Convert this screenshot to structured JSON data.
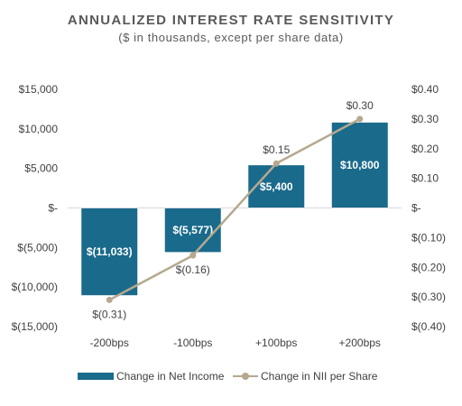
{
  "chart_data": {
    "type": "bar",
    "title": "ANNUALIZED INTEREST RATE SENSITIVITY",
    "subtitle": "($ in thousands, except per share data)",
    "categories": [
      "-200bps",
      "-100bps",
      "+100bps",
      "+200bps"
    ],
    "series": [
      {
        "name": "Change in Net Income",
        "type": "bar",
        "axis": "left",
        "values": [
          -11033,
          -5577,
          5400,
          10800
        ],
        "labels": [
          "$(11,033)",
          "$(5,577)",
          "$5,400",
          "$10,800"
        ],
        "color": "#1a6a8c"
      },
      {
        "name": "Change in NII per Share",
        "type": "line",
        "axis": "right",
        "values": [
          -0.31,
          -0.16,
          0.15,
          0.3
        ],
        "labels": [
          "$(0.31)",
          "$(0.16)",
          "$0.15",
          "$0.30"
        ],
        "color": "#b5a88f"
      }
    ],
    "y_left": {
      "ylim": [
        -15000,
        15000
      ],
      "ticks": [
        15000,
        10000,
        5000,
        0,
        -5000,
        -10000,
        -15000
      ],
      "tick_labels": [
        "$15,000",
        "$10,000",
        "$5,000",
        "$-",
        "$(5,000)",
        "$(10,000)",
        "$(15,000)"
      ]
    },
    "y_right": {
      "ylim": [
        -0.4,
        0.4
      ],
      "ticks": [
        0.4,
        0.3,
        0.2,
        0.1,
        0,
        -0.1,
        -0.2,
        -0.3,
        -0.4
      ],
      "tick_labels": [
        "$0.40",
        "$0.30",
        "$0.20",
        "$0.10",
        "$-",
        "$(0.10)",
        "$(0.20)",
        "$(0.30)",
        "$(0.40)"
      ]
    },
    "grid": false,
    "legend_position": "bottom"
  }
}
